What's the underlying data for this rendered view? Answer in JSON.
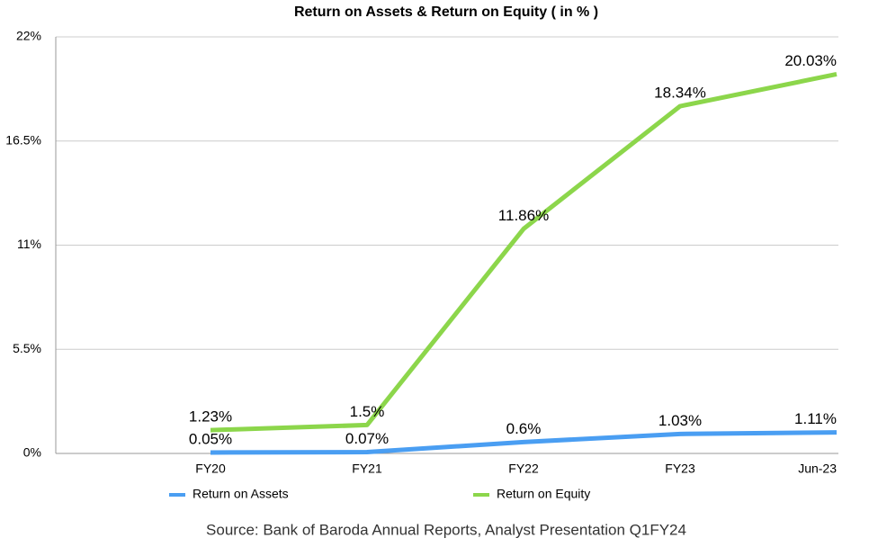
{
  "chart_data": {
    "type": "line",
    "title": "Return on Assets & Return on Equity ( in % )",
    "source": "Source: Bank of Baroda Annual Reports, Analyst Presentation Q1FY24",
    "categories": [
      "FY20",
      "FY21",
      "FY22",
      "FY23",
      "Jun-23"
    ],
    "series": [
      {
        "name": "Return on Assets",
        "color": "#4a9ef2",
        "values": [
          0.05,
          0.07,
          0.6,
          1.03,
          1.11
        ],
        "value_labels": [
          "0.05%",
          "0.07%",
          "0.6%",
          "1.03%",
          "1.11%"
        ]
      },
      {
        "name": "Return on Equity",
        "color": "#8cd64b",
        "values": [
          1.23,
          1.5,
          11.86,
          18.34,
          20.03
        ],
        "value_labels": [
          "1.23%",
          "1.5%",
          "11.86%",
          "18.34%",
          "20.03%"
        ]
      }
    ],
    "ylim": [
      0,
      22
    ],
    "yticks": [
      {
        "value": 0,
        "label": "0%"
      },
      {
        "value": 5.5,
        "label": "5.5%"
      },
      {
        "value": 11,
        "label": "11%"
      },
      {
        "value": 16.5,
        "label": "16.5%"
      },
      {
        "value": 22,
        "label": "22%"
      }
    ],
    "grid": true,
    "legend": "bottom"
  }
}
